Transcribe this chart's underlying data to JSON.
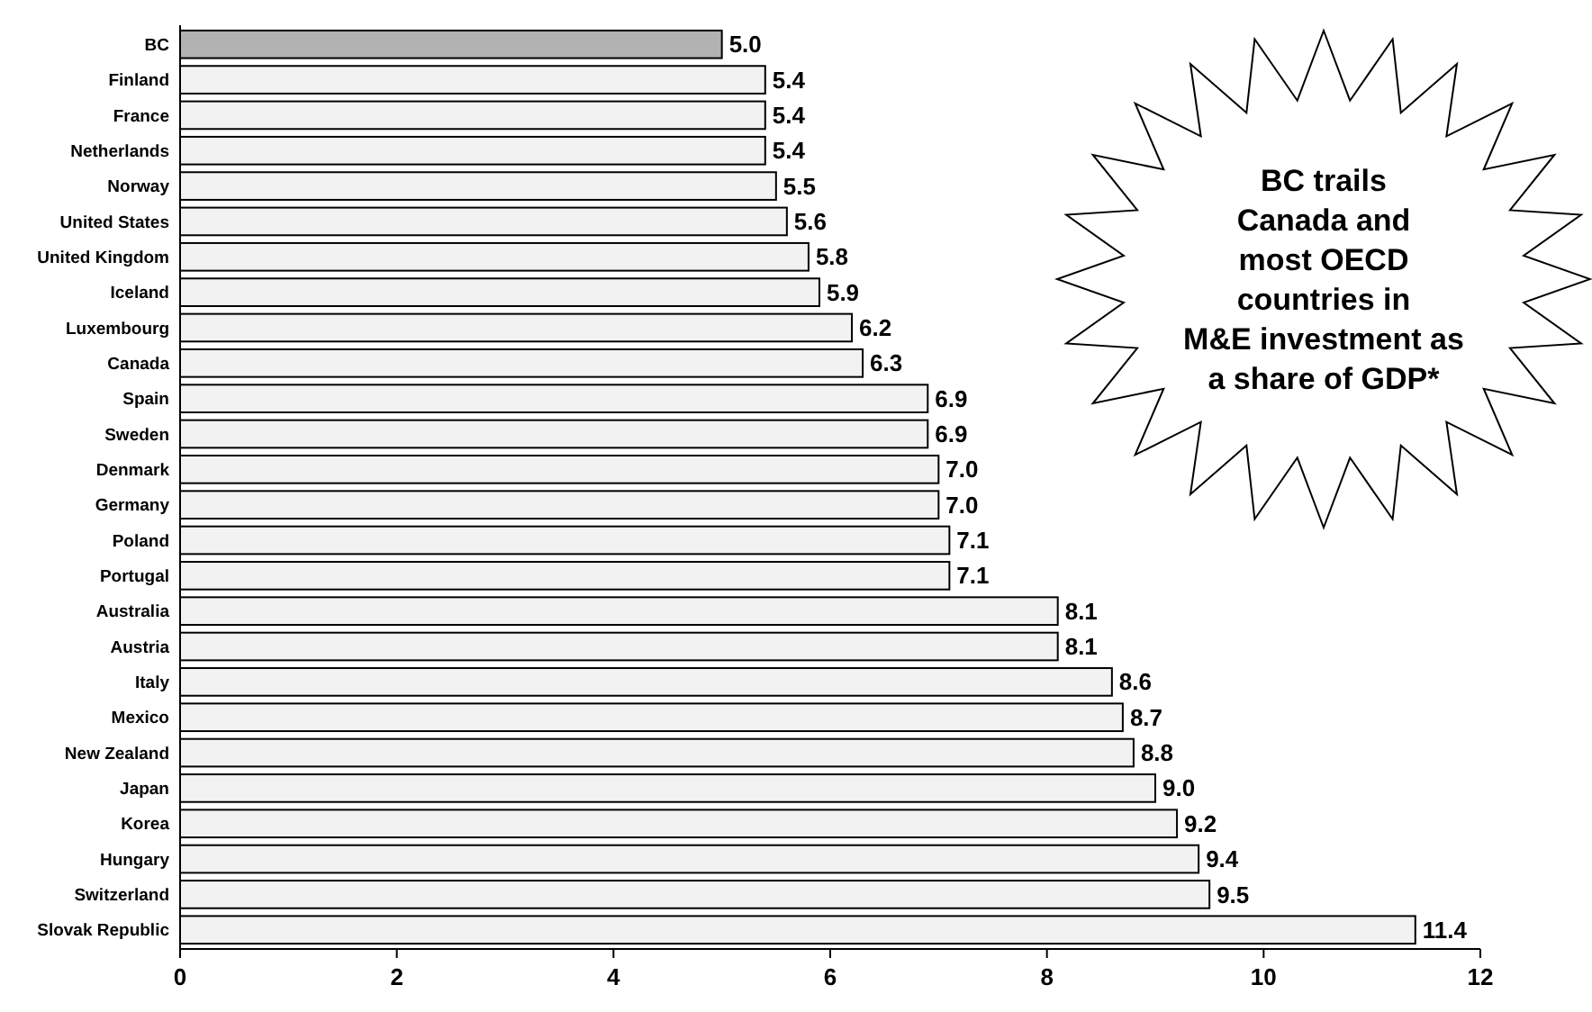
{
  "chart_data": {
    "type": "bar",
    "orientation": "horizontal",
    "categories": [
      "BC",
      "Finland",
      "France",
      "Netherlands",
      "Norway",
      "United States",
      "United Kingdom",
      "Iceland",
      "Luxembourg",
      "Canada",
      "Spain",
      "Sweden",
      "Denmark",
      "Germany",
      "Poland",
      "Portugal",
      "Australia",
      "Austria",
      "Italy",
      "Mexico",
      "New Zealand",
      "Japan",
      "Korea",
      "Hungary",
      "Switzerland",
      "Slovak Republic"
    ],
    "values": [
      5.0,
      5.4,
      5.4,
      5.4,
      5.5,
      5.6,
      5.8,
      5.9,
      6.2,
      6.3,
      6.9,
      6.9,
      7.0,
      7.0,
      7.1,
      7.1,
      8.1,
      8.1,
      8.6,
      8.7,
      8.8,
      9.0,
      9.2,
      9.4,
      9.5,
      11.4
    ],
    "value_labels": [
      "5.0",
      "5.4",
      "5.4",
      "5.4",
      "5.5",
      "5.6",
      "5.8",
      "5.9",
      "6.2",
      "6.3",
      "6.9",
      "6.9",
      "7.0",
      "7.0",
      "7.1",
      "7.1",
      "8.1",
      "8.1",
      "8.6",
      "8.7",
      "8.8",
      "9.0",
      "9.2",
      "9.4",
      "9.5",
      "11.4"
    ],
    "colors": [
      "#b2b2b2",
      "#f2f2f2",
      "#f2f2f2",
      "#f2f2f2",
      "#f2f2f2",
      "#f2f2f2",
      "#f2f2f2",
      "#f2f2f2",
      "#f2f2f2",
      "#f2f2f2",
      "#f2f2f2",
      "#f2f2f2",
      "#f2f2f2",
      "#f2f2f2",
      "#f2f2f2",
      "#f2f2f2",
      "#f2f2f2",
      "#f2f2f2",
      "#f2f2f2",
      "#f2f2f2",
      "#f2f2f2",
      "#f2f2f2",
      "#f2f2f2",
      "#f2f2f2",
      "#f2f2f2",
      "#f2f2f2"
    ],
    "xlim": [
      0,
      12
    ],
    "xticks": [
      0,
      2,
      4,
      6,
      8,
      10,
      12
    ],
    "grid": false,
    "annotations": [
      "BC trails\nCanada and\nmost OECD\ncountries in\nM&E investment as\na share of GDP*"
    ]
  }
}
